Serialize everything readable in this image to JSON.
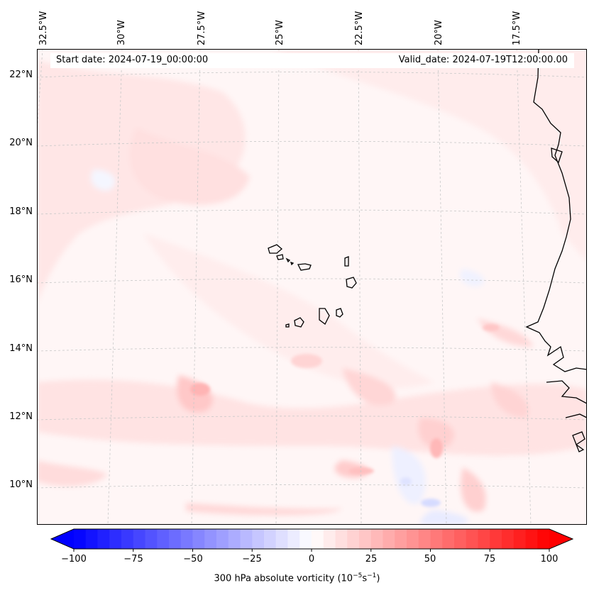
{
  "map": {
    "longitude_labels": [
      "32.5°W",
      "30°W",
      "27.5°W",
      "25°W",
      "22.5°W",
      "20°W",
      "17.5°W"
    ],
    "latitude_labels": [
      "22°N",
      "20°N",
      "18°N",
      "16°N",
      "14°N",
      "12°N",
      "10°N"
    ],
    "start_date": "Start date: 2024-07-19_00:00:00",
    "valid_date": "Valid_date: 2024-07-19T12:00:00.00",
    "field": "300 hPa absolute vorticity",
    "colors": {
      "coastline": "#000000",
      "negative_max": "#0000ff",
      "positive_max": "#ff0000",
      "gridline": "#c8c8c8"
    }
  },
  "colorbar": {
    "ticks": [
      "−100",
      "−75",
      "−50",
      "−25",
      "0",
      "25",
      "50",
      "75",
      "100"
    ],
    "label_text": "300 hPa absolute vorticity (10",
    "label_exp1": "−5",
    "label_mid": "s",
    "label_exp2": "−1",
    "label_close": ")",
    "range": [
      -100,
      100
    ],
    "extend": "both",
    "colormap": "bwr"
  }
}
